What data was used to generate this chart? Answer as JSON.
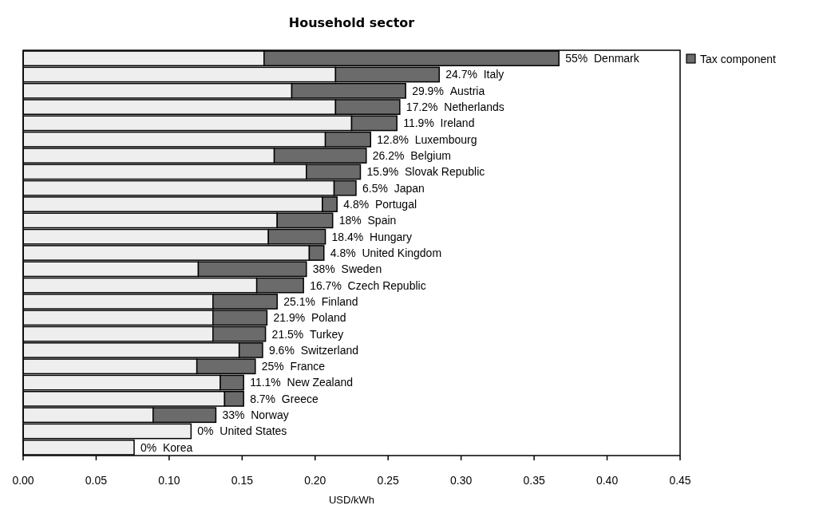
{
  "chart_data": {
    "type": "bar",
    "orientation": "horizontal",
    "stacked": true,
    "title": "Household sector",
    "xlabel": "USD/kWh",
    "categories": [
      "55%  Denmark",
      "24.7%  Italy",
      "29.9%  Austria",
      "17.2%  Netherlands",
      "11.9%  Ireland",
      "12.8%  Luxembourg",
      "26.2%  Belgium",
      "15.9%  Slovak Republic",
      "6.5%  Japan",
      "4.8%  Portugal",
      "18%  Spain",
      "18.4%  Hungary",
      "4.8%  United Kingdom",
      "38%  Sweden",
      "16.7%  Czech Republic",
      "25.1%  Finland",
      "21.9%  Poland",
      "21.5%  Turkey",
      "9.6%  Switzerland",
      "25%  France",
      "11.1%  New Zealand",
      "8.7%  Greece",
      "33%  Norway",
      "0%  United States",
      "0%  Korea"
    ],
    "series": [
      {
        "color": "#eeeeee",
        "values": [
          0.165,
          0.214,
          0.184,
          0.214,
          0.225,
          0.207,
          0.172,
          0.194,
          0.213,
          0.205,
          0.174,
          0.168,
          0.196,
          0.12,
          0.16,
          0.13,
          0.13,
          0.13,
          0.148,
          0.119,
          0.135,
          0.138,
          0.089,
          0.115,
          0.076
        ]
      },
      {
        "name": "Tax component",
        "color": "#6b6b6b",
        "values": [
          0.202,
          0.071,
          0.078,
          0.044,
          0.031,
          0.031,
          0.063,
          0.037,
          0.015,
          0.01,
          0.038,
          0.039,
          0.01,
          0.074,
          0.032,
          0.044,
          0.037,
          0.036,
          0.016,
          0.04,
          0.016,
          0.013,
          0.043,
          0,
          0
        ]
      }
    ],
    "xlim": [
      0,
      0.45
    ],
    "xticks": [
      {
        "value": 0,
        "label": "0.00"
      },
      {
        "value": 0.05,
        "label": "0.05"
      },
      {
        "value": 0.1,
        "label": "0.10"
      },
      {
        "value": 0.15,
        "label": "0.15"
      },
      {
        "value": 0.2,
        "label": "0.20"
      },
      {
        "value": 0.25,
        "label": "0.25"
      },
      {
        "value": 0.3,
        "label": "0.30"
      },
      {
        "value": 0.35,
        "label": "0.35"
      },
      {
        "value": 0.4,
        "label": "0.40"
      },
      {
        "value": 0.45,
        "label": "0.45"
      }
    ],
    "tick_labels": "x",
    "legend": "top right",
    "grid": false
  }
}
